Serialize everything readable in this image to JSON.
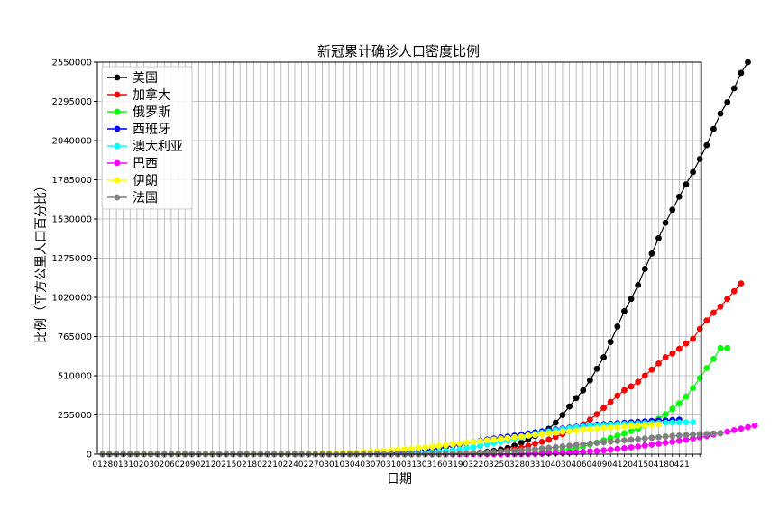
{
  "chart_data": {
    "type": "line",
    "title": "新冠累计确诊人口密度比例",
    "xlabel": "日期",
    "ylabel": "比例（平方公里人口百分比）",
    "ylim": [
      0,
      2550000
    ],
    "yticks": [
      0,
      255000,
      510000,
      765000,
      1020000,
      1275000,
      1530000,
      1785000,
      2040000,
      2295000,
      2550000
    ],
    "xtick_labels": [
      "0128",
      "0131",
      "0203",
      "0206",
      "0209",
      "0212",
      "0215",
      "0218",
      "0221",
      "0224",
      "0227",
      "0301",
      "0304",
      "0307",
      "0310",
      "0313",
      "0316",
      "0319",
      "0322",
      "0325",
      "0328",
      "0331",
      "0403",
      "0406",
      "0409",
      "0412",
      "0415",
      "0418",
      "0421"
    ],
    "x_start": "0128",
    "x_end": "0424",
    "grid": true,
    "legend_position": "top-left",
    "series": [
      {
        "name": "美国",
        "color": "#000000",
        "values": [
          0,
          0,
          0,
          0,
          0,
          0,
          0,
          0,
          0,
          0,
          0,
          0,
          0,
          0,
          0,
          0,
          0,
          0,
          0,
          0,
          0,
          0,
          0,
          0,
          0,
          0,
          0,
          0,
          0,
          0,
          0,
          0,
          0,
          0,
          0,
          0,
          0,
          0,
          0,
          0,
          0,
          0,
          0,
          0,
          0,
          0,
          0,
          0,
          0,
          0,
          0,
          1000,
          3000,
          5000,
          7000,
          10000,
          15000,
          22000,
          30000,
          40000,
          55000,
          75000,
          95000,
          118000,
          140000,
          165000,
          205000,
          255000,
          310000,
          365000,
          415000,
          480000,
          555000,
          630000,
          730000,
          830000,
          930000,
          1010000,
          1100000,
          1205000,
          1305000,
          1405000,
          1505000,
          1590000,
          1675000,
          1755000,
          1835000,
          1920000,
          2010000,
          2115000,
          2215000,
          2290000,
          2380000,
          2480000,
          2550000
        ]
      },
      {
        "name": "加拿大",
        "color": "#ff0000",
        "values": [
          0,
          0,
          0,
          0,
          0,
          0,
          0,
          0,
          0,
          0,
          0,
          0,
          0,
          0,
          0,
          0,
          0,
          0,
          0,
          0,
          0,
          0,
          0,
          0,
          0,
          0,
          0,
          0,
          0,
          0,
          0,
          0,
          0,
          0,
          0,
          0,
          0,
          0,
          0,
          0,
          0,
          0,
          0,
          0,
          0,
          0,
          0,
          0,
          0,
          0,
          0,
          500,
          1000,
          2000,
          3000,
          5000,
          8000,
          12000,
          18000,
          25000,
          32000,
          42000,
          55000,
          68000,
          80000,
          95000,
          112000,
          130000,
          150000,
          170000,
          195000,
          225000,
          260000,
          300000,
          340000,
          380000,
          415000,
          440000,
          470000,
          510000,
          550000,
          590000,
          630000,
          655000,
          685000,
          720000,
          750000,
          815000,
          870000,
          920000,
          960000,
          1010000,
          1060000,
          1110000
        ]
      },
      {
        "name": "俄罗斯",
        "color": "#00ff00",
        "values": [
          0,
          0,
          0,
          0,
          0,
          0,
          0,
          0,
          0,
          0,
          0,
          0,
          0,
          0,
          0,
          0,
          0,
          0,
          0,
          0,
          0,
          0,
          0,
          0,
          0,
          0,
          0,
          0,
          0,
          0,
          0,
          0,
          0,
          0,
          0,
          0,
          0,
          0,
          0,
          0,
          0,
          0,
          0,
          0,
          0,
          0,
          0,
          0,
          0,
          0,
          0,
          0,
          0,
          0,
          0,
          0,
          0,
          500,
          1000,
          2000,
          3000,
          5000,
          7000,
          10000,
          13000,
          17000,
          21000,
          26000,
          32000,
          40000,
          50000,
          62000,
          75000,
          90000,
          105000,
          120000,
          135000,
          150000,
          165000,
          185000,
          205000,
          230000,
          260000,
          295000,
          330000,
          375000,
          430000,
          495000,
          560000,
          620000,
          690000,
          690000
        ]
      },
      {
        "name": "西班牙",
        "color": "#0000ff",
        "values": [
          0,
          0,
          0,
          0,
          0,
          0,
          0,
          0,
          0,
          0,
          0,
          0,
          0,
          0,
          0,
          0,
          0,
          0,
          0,
          0,
          0,
          0,
          0,
          0,
          0,
          0,
          0,
          0,
          0,
          0,
          0,
          0,
          0,
          0,
          0,
          0,
          500,
          1000,
          1500,
          2000,
          3000,
          4000,
          6000,
          9000,
          12000,
          16000,
          20000,
          25000,
          31000,
          38000,
          46000,
          55000,
          63000,
          72000,
          80000,
          88000,
          95000,
          102000,
          108000,
          114000,
          120000,
          127000,
          134000,
          141000,
          148000,
          154000,
          160000,
          166000,
          172000,
          178000,
          184000,
          188000,
          192000,
          195000,
          198000,
          201000,
          204000,
          207000,
          210000,
          213000,
          216000,
          218000,
          220000,
          222000,
          224000
        ]
      },
      {
        "name": "澳大利亚",
        "color": "#00ffff",
        "values": [
          0,
          0,
          0,
          0,
          0,
          0,
          0,
          0,
          0,
          0,
          0,
          0,
          0,
          0,
          0,
          0,
          0,
          0,
          0,
          0,
          0,
          0,
          0,
          0,
          0,
          0,
          0,
          0,
          0,
          0,
          0,
          0,
          0,
          0,
          0,
          0,
          0,
          0,
          0,
          0,
          0,
          500,
          1000,
          2000,
          3500,
          5000,
          7000,
          9500,
          12500,
          16000,
          20000,
          25000,
          31000,
          38000,
          46000,
          55000,
          64000,
          73000,
          82000,
          91000,
          100000,
          110000,
          120000,
          130000,
          139000,
          147000,
          155000,
          162000,
          168000,
          174000,
          179000,
          183000,
          187000,
          190000,
          192000,
          194000,
          196000,
          198000,
          200000,
          201000,
          202000,
          203000,
          204000,
          205000,
          206000,
          207000,
          208000
        ]
      },
      {
        "name": "巴西",
        "color": "#ff00ff",
        "values": [
          0,
          0,
          0,
          0,
          0,
          0,
          0,
          0,
          0,
          0,
          0,
          0,
          0,
          0,
          0,
          0,
          0,
          0,
          0,
          0,
          0,
          0,
          0,
          0,
          0,
          0,
          0,
          0,
          0,
          0,
          0,
          0,
          0,
          0,
          0,
          0,
          0,
          0,
          0,
          0,
          0,
          0,
          0,
          0,
          0,
          0,
          0,
          0,
          0,
          0,
          0,
          0,
          0,
          0,
          0,
          0,
          0,
          0,
          0,
          0,
          500,
          1000,
          1500,
          2500,
          3500,
          5000,
          6500,
          8000,
          10000,
          12500,
          15000,
          18000,
          21000,
          25000,
          29000,
          34000,
          39000,
          44000,
          50000,
          56000,
          62000,
          68000,
          74000,
          80000,
          87000,
          94000,
          101000,
          109000,
          118000,
          127000,
          136000,
          146000,
          156000,
          166000,
          176000,
          186000
        ]
      },
      {
        "name": "伊朗",
        "color": "#ffff00",
        "values": [
          0,
          0,
          0,
          0,
          0,
          0,
          0,
          0,
          0,
          0,
          0,
          0,
          0,
          0,
          0,
          0,
          0,
          0,
          0,
          0,
          0,
          0,
          0,
          0,
          0,
          0,
          0,
          0,
          500,
          1000,
          1500,
          2000,
          3000,
          4000,
          5500,
          7000,
          9000,
          11000,
          13500,
          16000,
          19000,
          22000,
          25000,
          28500,
          32000,
          36000,
          40000,
          44500,
          49000,
          54000,
          59000,
          64000,
          69500,
          75000,
          80000,
          85000,
          90000,
          95000,
          100000,
          105000,
          110000,
          115000,
          120000,
          125000,
          130000,
          135000,
          140000,
          145000,
          150000,
          154000,
          158000,
          162000,
          166000,
          170000,
          173000,
          176000,
          179000,
          182000,
          185000,
          188000,
          190000,
          192000
        ]
      },
      {
        "name": "法国",
        "color": "#808080",
        "values": [
          0,
          0,
          0,
          0,
          0,
          0,
          0,
          0,
          0,
          0,
          0,
          0,
          0,
          0,
          0,
          0,
          0,
          0,
          0,
          0,
          0,
          0,
          0,
          0,
          0,
          0,
          0,
          0,
          0,
          0,
          0,
          0,
          0,
          0,
          0,
          0,
          0,
          0,
          0,
          0,
          0,
          0,
          0,
          0,
          0,
          0,
          0,
          500,
          1000,
          1500,
          2000,
          3000,
          4000,
          5500,
          7000,
          9000,
          11000,
          13500,
          16000,
          19000,
          22000,
          25500,
          29000,
          33000,
          37000,
          41000,
          45500,
          50000,
          55000,
          60000,
          64500,
          69000,
          73500,
          78000,
          82000,
          86000,
          90000,
          94000,
          98000,
          102000,
          106000,
          110000,
          114000,
          118000,
          121000,
          124000,
          127000,
          130000,
          132000,
          134000,
          135000
        ]
      }
    ]
  }
}
